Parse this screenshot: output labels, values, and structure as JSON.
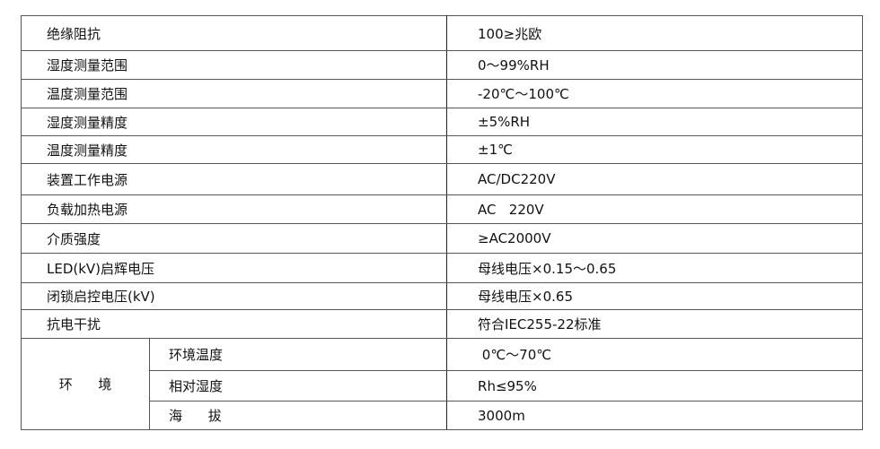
{
  "rows": [
    {
      "label": "绝缘阻抗",
      "value": "100≥兆欧"
    },
    {
      "label": "湿度测量范围",
      "value": "0～99%RH"
    },
    {
      "label": "温度测量范围",
      "value": "-20℃～100℃"
    },
    {
      "label": "湿度测量精度",
      "value": "±5%RH"
    },
    {
      "label": "温度测量精度",
      "value": "±1℃"
    },
    {
      "label": "装置工作电源",
      "value": "AC/DC220V"
    },
    {
      "label": "负载加热电源",
      "value": "AC   220V"
    },
    {
      "label": "介质强度",
      "value": "≥AC2000V"
    },
    {
      "label": "LED(kV)启辉电压",
      "value": "母线电压×0.15～0.65"
    },
    {
      "label": "闭锁启控电压(kV)",
      "value": "母线电压×0.65"
    },
    {
      "label": "抗电干扰",
      "value": "符合IEC255-22标准"
    }
  ],
  "environment": {
    "label": "环      境",
    "items": [
      {
        "label": "环境温度",
        "value": " 0℃～70℃"
      },
      {
        "label": "相对湿度",
        "value": "Rh≤95%"
      },
      {
        "label": "海      拔",
        "value": "3000m"
      }
    ]
  }
}
